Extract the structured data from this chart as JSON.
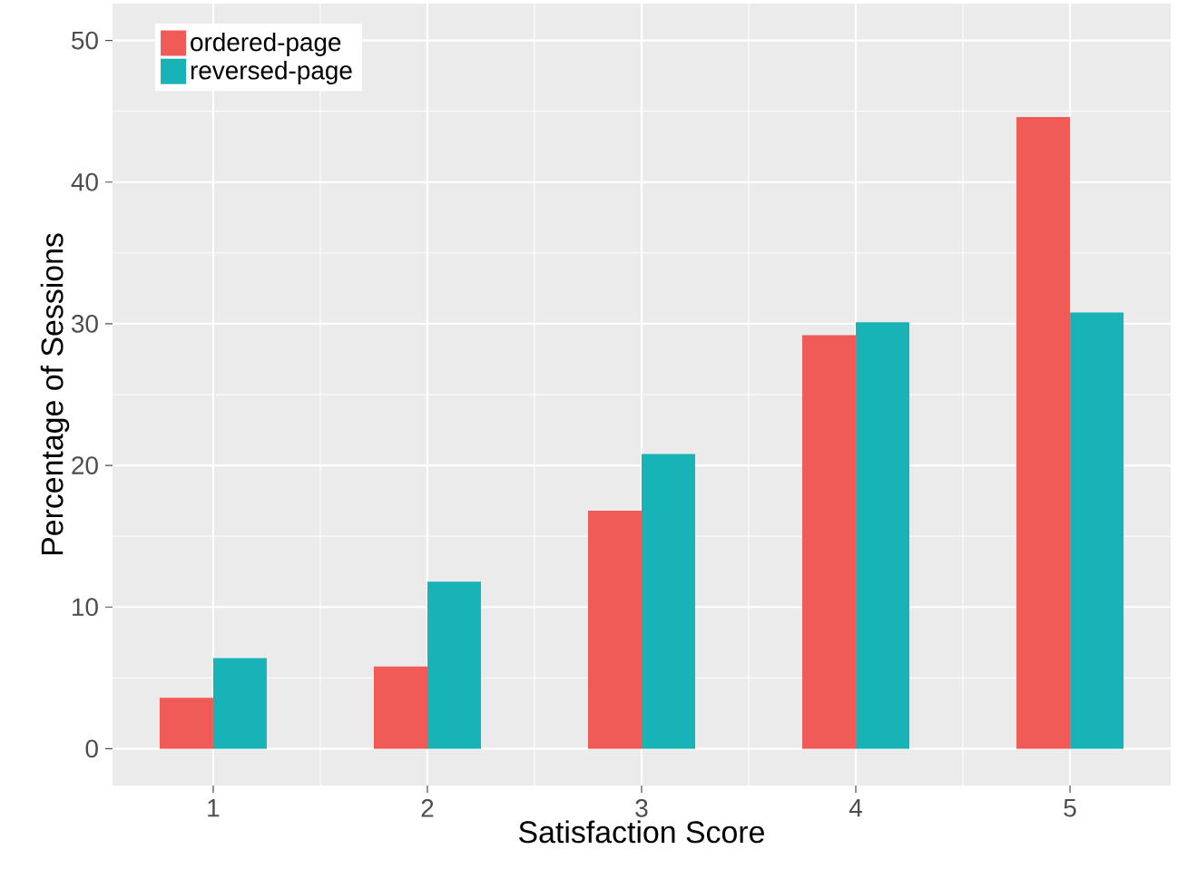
{
  "chart_data": {
    "type": "bar",
    "xlabel": "Satisfaction Score",
    "ylabel": "Percentage of Sessions",
    "categories": [
      "1",
      "2",
      "3",
      "4",
      "5"
    ],
    "series": [
      {
        "name": "ordered-page",
        "color": "#f15b57",
        "values": [
          3.6,
          5.8,
          16.8,
          29.2,
          44.6
        ]
      },
      {
        "name": "reversed-page",
        "color": "#18b3b6",
        "values": [
          6.4,
          11.8,
          20.8,
          30.1,
          30.8
        ]
      }
    ],
    "ylim": [
      -2.6,
      52.6
    ],
    "yticks": [
      0,
      10,
      20,
      30,
      40,
      50
    ],
    "grid": true,
    "legend": "top left"
  }
}
